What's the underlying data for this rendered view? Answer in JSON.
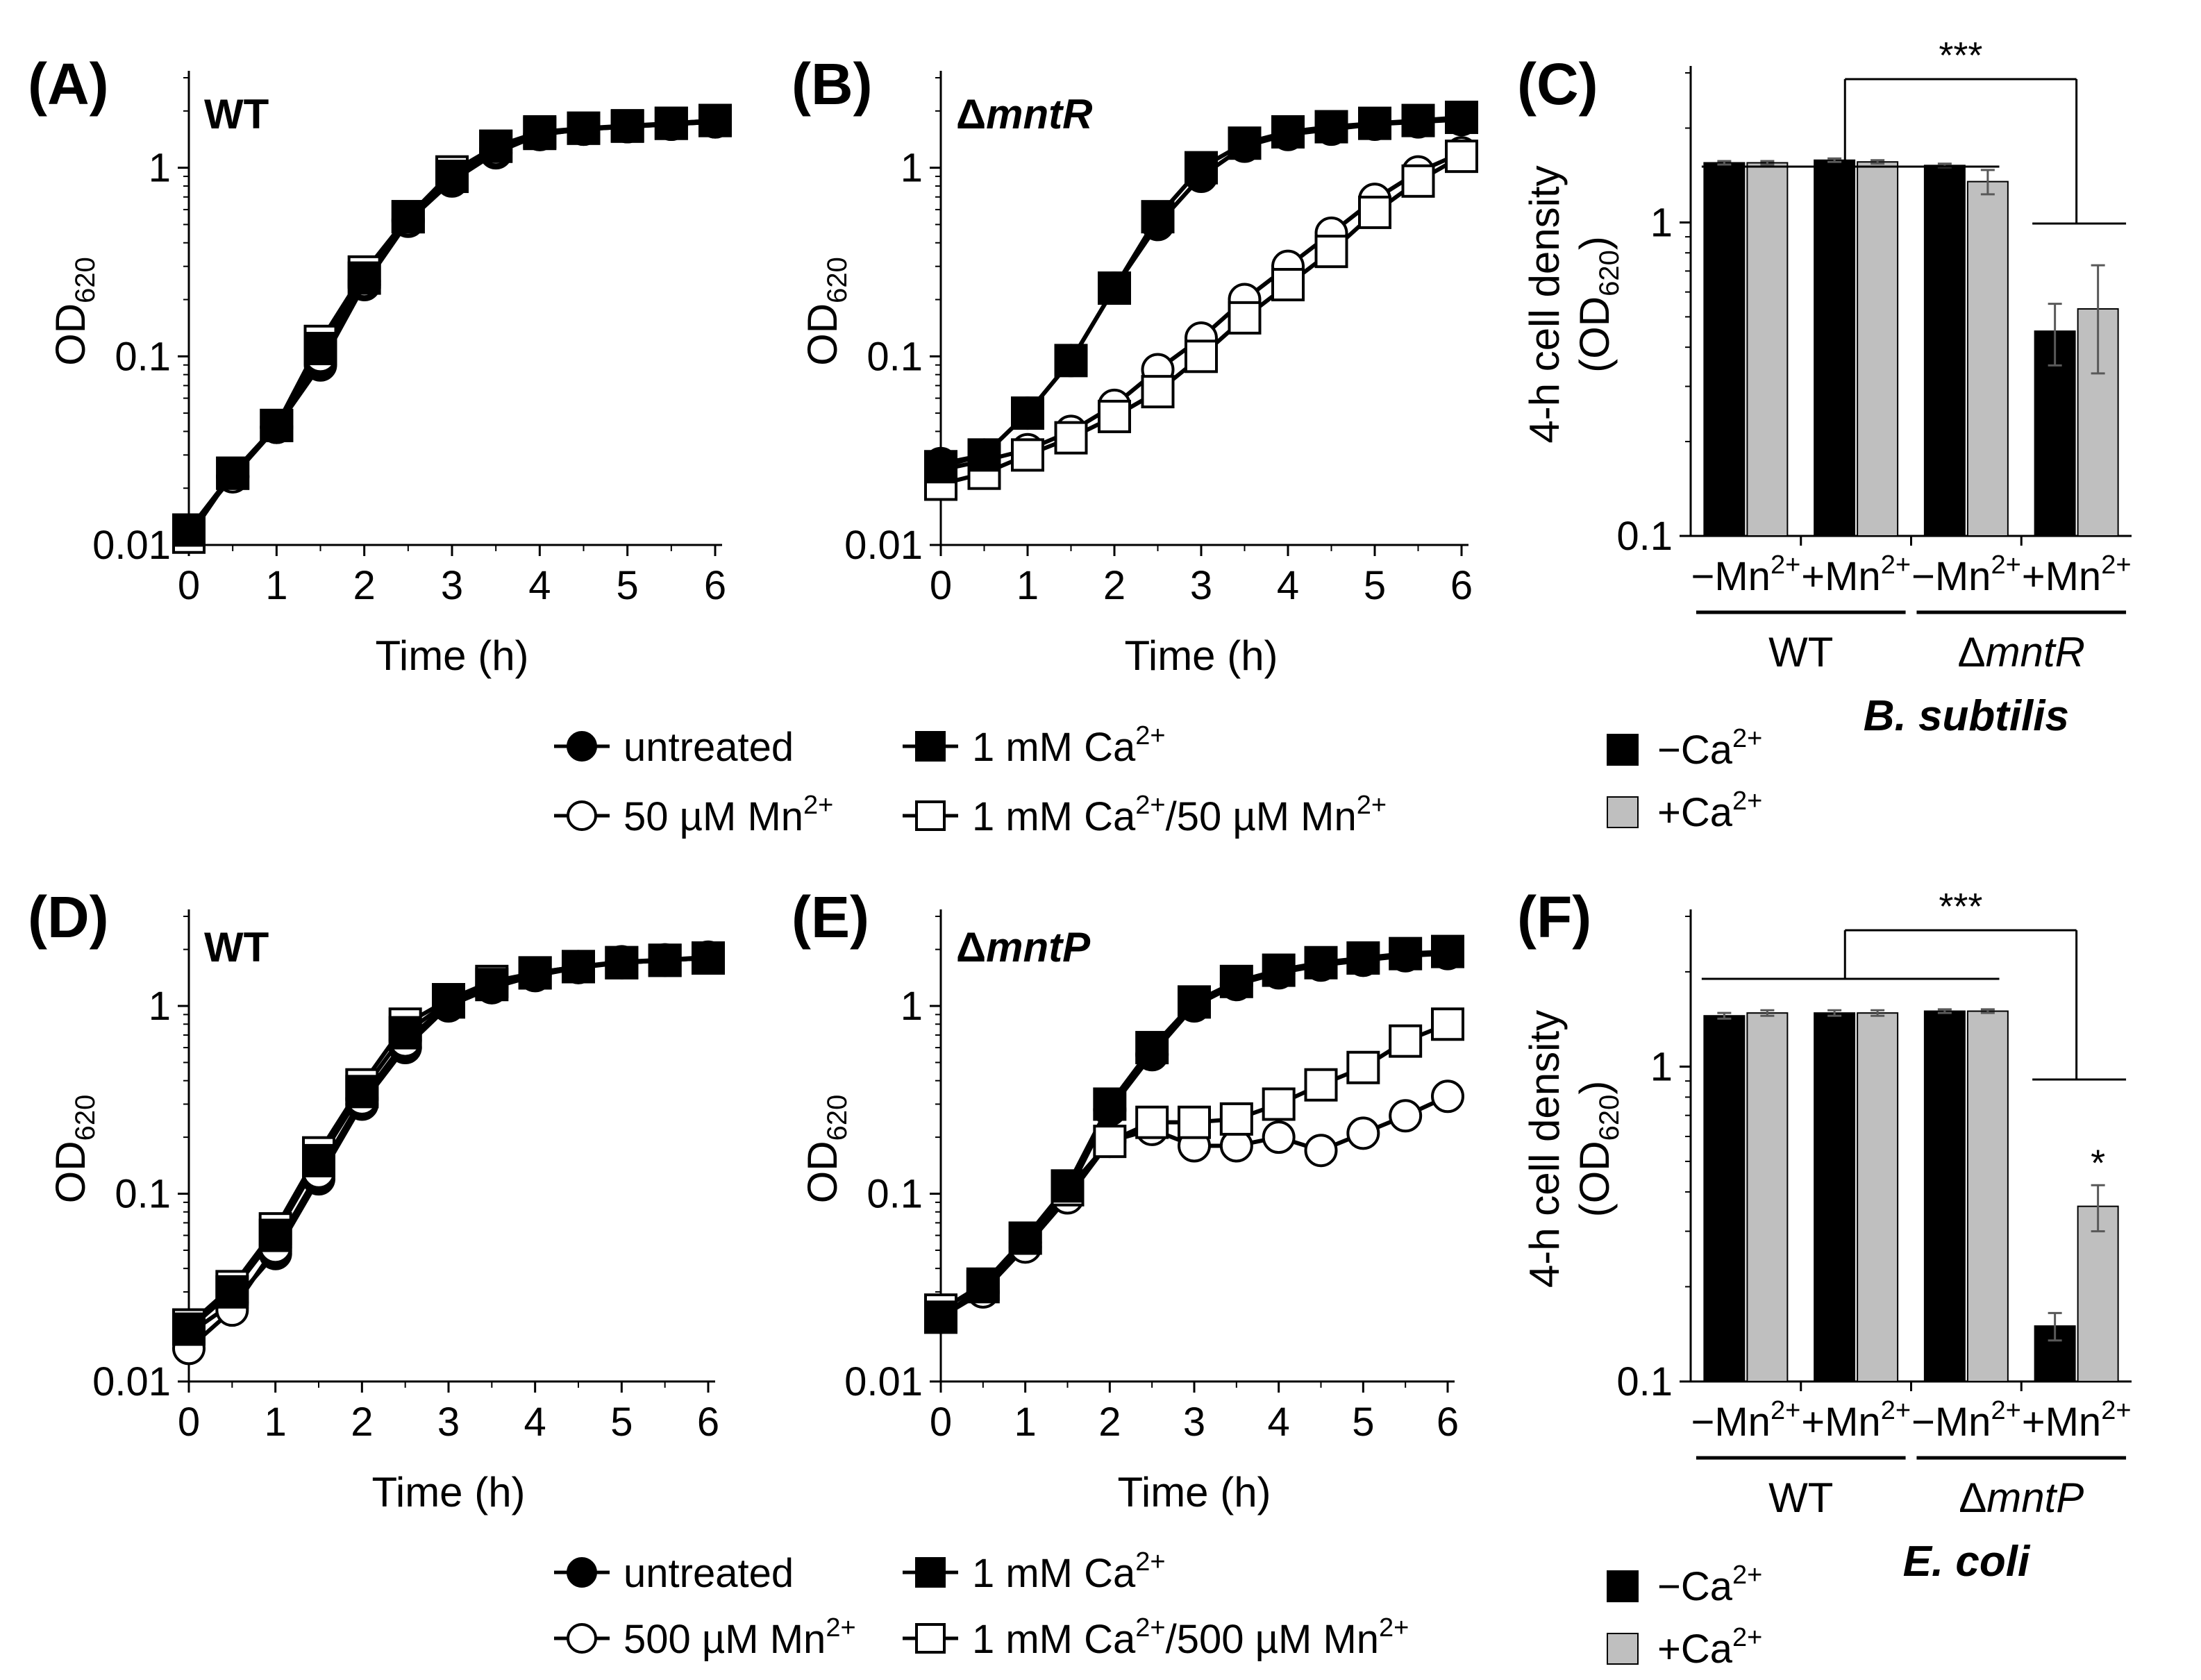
{
  "colors": {
    "black": "#000000",
    "gray": "#BFBFBF",
    "errorbar": "#595959",
    "white": "#FFFFFF"
  },
  "chart_data": [
    {
      "panel": "(A)",
      "strain": "WT",
      "type": "line",
      "scale": "log",
      "xlabel": "Time (h)",
      "ylabel": "OD",
      "ylabel_sub": "620",
      "xlim": [
        0,
        6
      ],
      "ylim": [
        0.01,
        3
      ],
      "xticks": [
        "0",
        "1",
        "2",
        "3",
        "4",
        "5",
        "6"
      ],
      "yticks": [
        "0.01",
        "0.1",
        "1"
      ],
      "x": [
        0,
        0.5,
        1,
        1.5,
        2,
        2.5,
        3,
        3.5,
        4,
        4.5,
        5,
        5.5,
        6
      ],
      "series": [
        {
          "name": "untreated",
          "marker": "filled-circle",
          "values": [
            0.012,
            0.023,
            0.042,
            0.09,
            0.24,
            0.52,
            0.85,
            1.2,
            1.5,
            1.6,
            1.65,
            1.7,
            1.75
          ]
        },
        {
          "name": "50 µM Mn2+",
          "marker": "open-circle",
          "values": [
            0.012,
            0.023,
            0.042,
            0.1,
            0.25,
            0.53,
            0.88,
            1.25,
            1.5,
            1.6,
            1.65,
            1.7,
            1.75
          ]
        },
        {
          "name": "1 mM Ca2+/50 µM Mn2+",
          "marker": "open-square",
          "values": [
            0.011,
            0.024,
            0.043,
            0.12,
            0.28,
            0.55,
            0.95,
            1.3,
            1.52,
            1.62,
            1.66,
            1.72,
            1.78
          ]
        },
        {
          "name": "1 mM Ca2+",
          "marker": "filled-square",
          "values": [
            0.012,
            0.024,
            0.043,
            0.11,
            0.26,
            0.55,
            0.9,
            1.3,
            1.55,
            1.62,
            1.67,
            1.72,
            1.78
          ]
        }
      ]
    },
    {
      "panel": "(B)",
      "strain_prefix": "Δ",
      "strain_italic": "mntR",
      "type": "line",
      "scale": "log",
      "xlabel": "Time (h)",
      "ylabel": "OD",
      "ylabel_sub": "620",
      "xlim": [
        0,
        6
      ],
      "ylim": [
        0.01,
        3
      ],
      "xticks": [
        "0",
        "1",
        "2",
        "3",
        "4",
        "5",
        "6"
      ],
      "yticks": [
        "0.01",
        "0.1",
        "1"
      ],
      "x": [
        0,
        0.5,
        1,
        1.5,
        2,
        2.5,
        3,
        3.5,
        4,
        4.5,
        5,
        5.5,
        6
      ],
      "series": [
        {
          "name": "untreated",
          "marker": "filled-circle",
          "values": [
            0.027,
            0.03,
            0.05,
            0.095,
            0.23,
            0.5,
            0.9,
            1.3,
            1.5,
            1.6,
            1.7,
            1.75,
            1.8
          ]
        },
        {
          "name": "50 µM Mn2+",
          "marker": "open-circle",
          "values": [
            0.025,
            0.028,
            0.032,
            0.04,
            0.055,
            0.085,
            0.125,
            0.2,
            0.3,
            0.45,
            0.68,
            0.95,
            1.2
          ]
        },
        {
          "name": "1 mM Ca2+/50 µM Mn2+",
          "marker": "open-square",
          "values": [
            0.021,
            0.024,
            0.03,
            0.037,
            0.048,
            0.065,
            0.1,
            0.16,
            0.24,
            0.36,
            0.58,
            0.85,
            1.15
          ]
        },
        {
          "name": "1 mM Ca2+",
          "marker": "filled-square",
          "values": [
            0.026,
            0.03,
            0.05,
            0.095,
            0.23,
            0.55,
            1.0,
            1.35,
            1.55,
            1.65,
            1.72,
            1.78,
            1.85
          ]
        }
      ]
    },
    {
      "panel": "(C)",
      "organism": "B. subtilis",
      "type": "bar",
      "scale": "log",
      "ylabel_line1": "4-h cell density",
      "ylabel_line2": "OD",
      "ylabel_sub": "620",
      "ylim": [
        0.1,
        3
      ],
      "yticks": [
        "0.1",
        "1"
      ],
      "categories": [
        "−Mn2+",
        "+Mn2+",
        "−Mn2+",
        "+Mn2+"
      ],
      "groups": [
        {
          "label": "WT"
        },
        {
          "prefix": "Δ",
          "italic": "mntR"
        }
      ],
      "series": [
        {
          "name": "−Ca2+",
          "values": [
            1.55,
            1.58,
            1.52,
            0.45
          ],
          "errors": [
            0.02,
            0.02,
            0.02,
            0.1
          ]
        },
        {
          "name": "+Ca2+",
          "values": [
            1.55,
            1.56,
            1.35,
            0.53
          ],
          "errors": [
            0.02,
            0.02,
            0.12,
            0.2
          ]
        }
      ],
      "significance": "***"
    },
    {
      "panel": "(D)",
      "strain": "WT",
      "type": "line",
      "scale": "log",
      "xlabel": "Time (h)",
      "ylabel": "OD",
      "ylabel_sub": "620",
      "xlim": [
        0,
        6
      ],
      "ylim": [
        0.01,
        3
      ],
      "xticks": [
        "0",
        "1",
        "2",
        "3",
        "4",
        "5",
        "6"
      ],
      "yticks": [
        "0.01",
        "0.1",
        "1"
      ],
      "x": [
        0,
        0.5,
        1,
        1.5,
        2,
        2.5,
        3,
        3.5,
        4,
        4.5,
        5,
        5.5,
        6
      ],
      "series": [
        {
          "name": "untreated",
          "marker": "filled-circle",
          "values": [
            0.018,
            0.026,
            0.048,
            0.12,
            0.3,
            0.6,
            1.0,
            1.25,
            1.45,
            1.6,
            1.7,
            1.75,
            1.8
          ]
        },
        {
          "name": "500 µM Mn2+",
          "marker": "open-circle",
          "values": [
            0.015,
            0.024,
            0.052,
            0.13,
            0.32,
            0.65,
            1.02,
            1.28,
            1.48,
            1.62,
            1.72,
            1.76,
            1.82
          ]
        },
        {
          "name": "1 mM Ca2+/500 µM Mn2+",
          "marker": "open-square",
          "values": [
            0.02,
            0.032,
            0.065,
            0.165,
            0.38,
            0.8,
            1.08,
            1.35,
            1.5,
            1.62,
            1.7,
            1.75,
            1.8
          ]
        },
        {
          "name": "1 mM Ca2+",
          "marker": "filled-square",
          "values": [
            0.019,
            0.03,
            0.06,
            0.15,
            0.35,
            0.72,
            1.05,
            1.3,
            1.5,
            1.62,
            1.7,
            1.75,
            1.8
          ]
        }
      ]
    },
    {
      "panel": "(E)",
      "strain_prefix": "Δ",
      "strain_italic": "mntP",
      "type": "line",
      "scale": "log",
      "xlabel": "Time (h)",
      "ylabel": "OD",
      "ylabel_sub": "620",
      "xlim": [
        0,
        6
      ],
      "ylim": [
        0.01,
        3
      ],
      "xticks": [
        "0",
        "1",
        "2",
        "3",
        "4",
        "5",
        "6"
      ],
      "yticks": [
        "0.01",
        "0.1",
        "1"
      ],
      "x": [
        0,
        0.5,
        1,
        1.5,
        2,
        2.5,
        3,
        3.5,
        4,
        4.5,
        5,
        5.5,
        6
      ],
      "series": [
        {
          "name": "untreated",
          "marker": "filled-circle",
          "values": [
            0.022,
            0.03,
            0.055,
            0.1,
            0.28,
            0.55,
            1.0,
            1.3,
            1.5,
            1.65,
            1.75,
            1.85,
            1.9
          ]
        },
        {
          "name": "500 µM Mn2+",
          "marker": "open-circle",
          "values": [
            0.023,
            0.03,
            0.052,
            0.095,
            0.19,
            0.22,
            0.18,
            0.18,
            0.2,
            0.17,
            0.21,
            0.26,
            0.33
          ]
        },
        {
          "name": "1 mM Ca2+/500 µM Mn2+",
          "marker": "open-square",
          "values": [
            0.024,
            0.033,
            0.058,
            0.105,
            0.19,
            0.24,
            0.24,
            0.25,
            0.3,
            0.38,
            0.47,
            0.65,
            0.8
          ]
        },
        {
          "name": "1 mM Ca2+",
          "marker": "filled-square",
          "values": [
            0.022,
            0.032,
            0.058,
            0.11,
            0.3,
            0.6,
            1.05,
            1.35,
            1.55,
            1.7,
            1.8,
            1.9,
            1.95
          ]
        }
      ]
    },
    {
      "panel": "(F)",
      "organism": "E. coli",
      "type": "bar",
      "scale": "log",
      "ylabel_line1": "4-h cell density",
      "ylabel_line2": "OD",
      "ylabel_sub": "620",
      "ylim": [
        0.1,
        3
      ],
      "yticks": [
        "0.1",
        "1"
      ],
      "categories": [
        "−Mn2+",
        "+Mn2+",
        "−Mn2+",
        "+Mn2+"
      ],
      "groups": [
        {
          "label": "WT"
        },
        {
          "prefix": "Δ",
          "italic": "mntP"
        }
      ],
      "series": [
        {
          "name": "−Ca2+",
          "values": [
            1.45,
            1.48,
            1.5,
            0.15
          ],
          "errors": [
            0.03,
            0.03,
            0.02,
            0.015
          ]
        },
        {
          "name": "+Ca2+",
          "values": [
            1.48,
            1.48,
            1.5,
            0.36
          ],
          "errors": [
            0.03,
            0.03,
            0.02,
            0.06
          ]
        }
      ],
      "significance": "***",
      "bar_star": "*"
    }
  ],
  "legends": {
    "top_left": [
      {
        "label": "untreated",
        "marker": "filled-circle"
      },
      {
        "label": "1 mM Ca",
        "sup": "2+",
        "marker": "filled-square"
      },
      {
        "label": "50 µM Mn",
        "sup": "2+",
        "marker": "open-circle"
      },
      {
        "label": "1 mM Ca",
        "sup": "2+",
        "label2": "/50 µM Mn",
        "sup2": "2+",
        "marker": "open-square"
      }
    ],
    "bottom_left": [
      {
        "label": "untreated",
        "marker": "filled-circle"
      },
      {
        "label": "1 mM Ca",
        "sup": "2+",
        "marker": "filled-square"
      },
      {
        "label": "500 µM Mn",
        "sup": "2+",
        "marker": "open-circle"
      },
      {
        "label": "1 mM Ca",
        "sup": "2+",
        "label2": "/500 µM Mn",
        "sup2": "2+",
        "marker": "open-square"
      }
    ],
    "bars_top": [
      {
        "label": "−Ca",
        "sup": "2+"
      },
      {
        "label": "+Ca",
        "sup": "2+"
      }
    ],
    "bars_bottom": [
      {
        "label": "−Ca",
        "sup": "2+"
      },
      {
        "label": "+Ca",
        "sup": "2+"
      }
    ]
  }
}
